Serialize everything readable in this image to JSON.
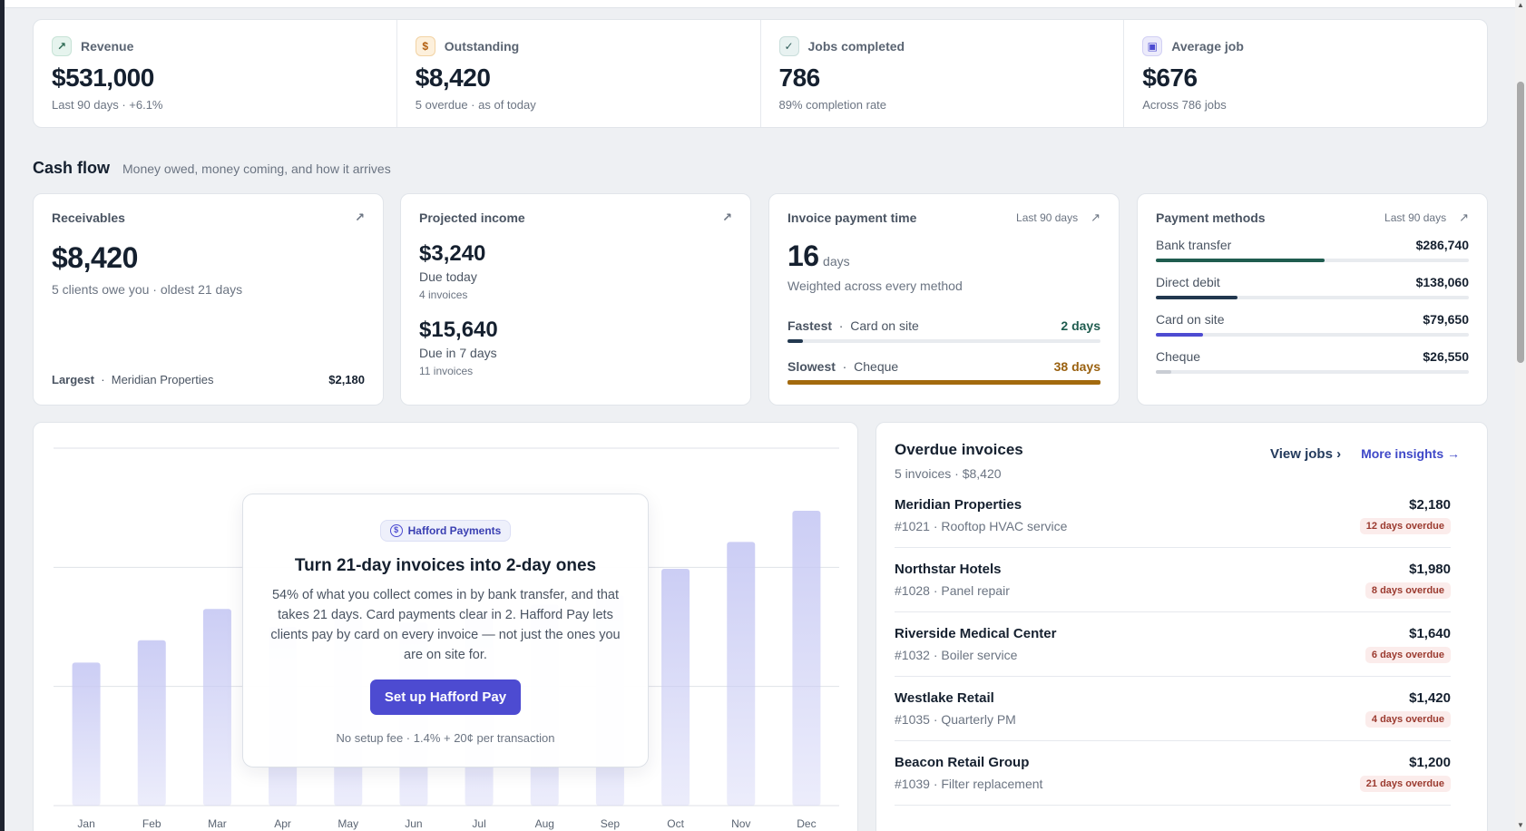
{
  "kpis": [
    {
      "label": "Revenue",
      "value": "$531,000",
      "sub": "Last 90 days · +6.1%",
      "icon": "trend-up-icon"
    },
    {
      "label": "Outstanding",
      "value": "$8,420",
      "sub": "5 overdue · as of today",
      "icon": "invoice-icon"
    },
    {
      "label": "Jobs completed",
      "value": "786",
      "sub": "89% completion rate",
      "icon": "check-circle-icon"
    },
    {
      "label": "Average job",
      "value": "$676",
      "sub": "Across 786 jobs",
      "icon": "wallet-icon"
    }
  ],
  "cashflow": {
    "title": "Cash flow",
    "subtitle": "Money owed, money coming, and how it arrives",
    "receivables": {
      "label": "Receivables",
      "value": "$8,420",
      "sub": "5 clients owe you · oldest 21 days",
      "largest_label": "Largest",
      "largest_client": "Meridian Properties",
      "largest_amount": "$2,180"
    },
    "projected": {
      "label": "Projected income",
      "today_value": "$3,240",
      "today_label": "Due today",
      "today_count": "4 invoices",
      "week_value": "$15,640",
      "week_label": "Due in 7 days",
      "week_count": "11 invoices"
    },
    "payment_time": {
      "label": "Invoice payment time",
      "period": "Last 90 days",
      "value": "16",
      "unit": "days",
      "sub": "Weighted across every method",
      "fastest_label": "Fastest",
      "fastest_method": "Card on site",
      "fastest_value": "2 days",
      "fastest_fraction": 0.05,
      "slowest_label": "Slowest",
      "slowest_method": "Cheque",
      "slowest_value": "38 days",
      "slowest_fraction": 1.0
    },
    "methods": {
      "label": "Payment methods",
      "period": "Last 90 days",
      "items": [
        {
          "name": "Bank transfer",
          "amount": "$286,740",
          "fraction": 0.54,
          "color": "#1f5c4f"
        },
        {
          "name": "Direct debit",
          "amount": "$138,060",
          "fraction": 0.26,
          "color": "#22384f"
        },
        {
          "name": "Card on site",
          "amount": "$79,650",
          "fraction": 0.15,
          "color": "#4d4bd1"
        },
        {
          "name": "Cheque",
          "amount": "$26,550",
          "fraction": 0.05,
          "color": "#c9cdd4"
        }
      ]
    }
  },
  "chart_data": {
    "type": "bar",
    "categories": [
      "Jan",
      "Feb",
      "Mar",
      "Apr",
      "May",
      "Jun",
      "Jul",
      "Aug",
      "Sep",
      "Oct",
      "Nov",
      "Dec"
    ],
    "values": [
      32,
      37,
      44,
      40,
      42,
      41,
      43,
      45,
      47,
      53,
      59,
      66
    ],
    "ylim": [
      0,
      80
    ],
    "grid": true,
    "bar_color": "#c9cbf4"
  },
  "promo": {
    "badge": "Hafford Payments",
    "title": "Turn 21-day invoices into 2-day ones",
    "body": "54% of what you collect comes in by bank transfer, and that takes 21 days. Card payments clear in 2. Hafford Pay lets clients pay by card on every invoice — not just the ones you are on site for.",
    "button": "Set up Hafford Pay",
    "note": "No setup fee · 1.4% + 20¢ per transaction"
  },
  "overdue": {
    "title": "Overdue invoices",
    "sub": "5 invoices · $8,420",
    "view_jobs": "View jobs",
    "more_insights": "More insights",
    "rows": [
      {
        "client": "Meridian Properties",
        "desc": "#1021 · Rooftop HVAC service",
        "amount": "$2,180",
        "overdue": "12 days overdue"
      },
      {
        "client": "Northstar Hotels",
        "desc": "#1028 · Panel repair",
        "amount": "$1,980",
        "overdue": "8 days overdue"
      },
      {
        "client": "Riverside Medical Center",
        "desc": "#1032 · Boiler service",
        "amount": "$1,640",
        "overdue": "6 days overdue"
      },
      {
        "client": "Westlake Retail",
        "desc": "#1035 · Quarterly PM",
        "amount": "$1,420",
        "overdue": "4 days overdue"
      },
      {
        "client": "Beacon Retail Group",
        "desc": "#1039 · Filter replacement",
        "amount": "$1,200",
        "overdue": "21 days overdue"
      }
    ]
  }
}
